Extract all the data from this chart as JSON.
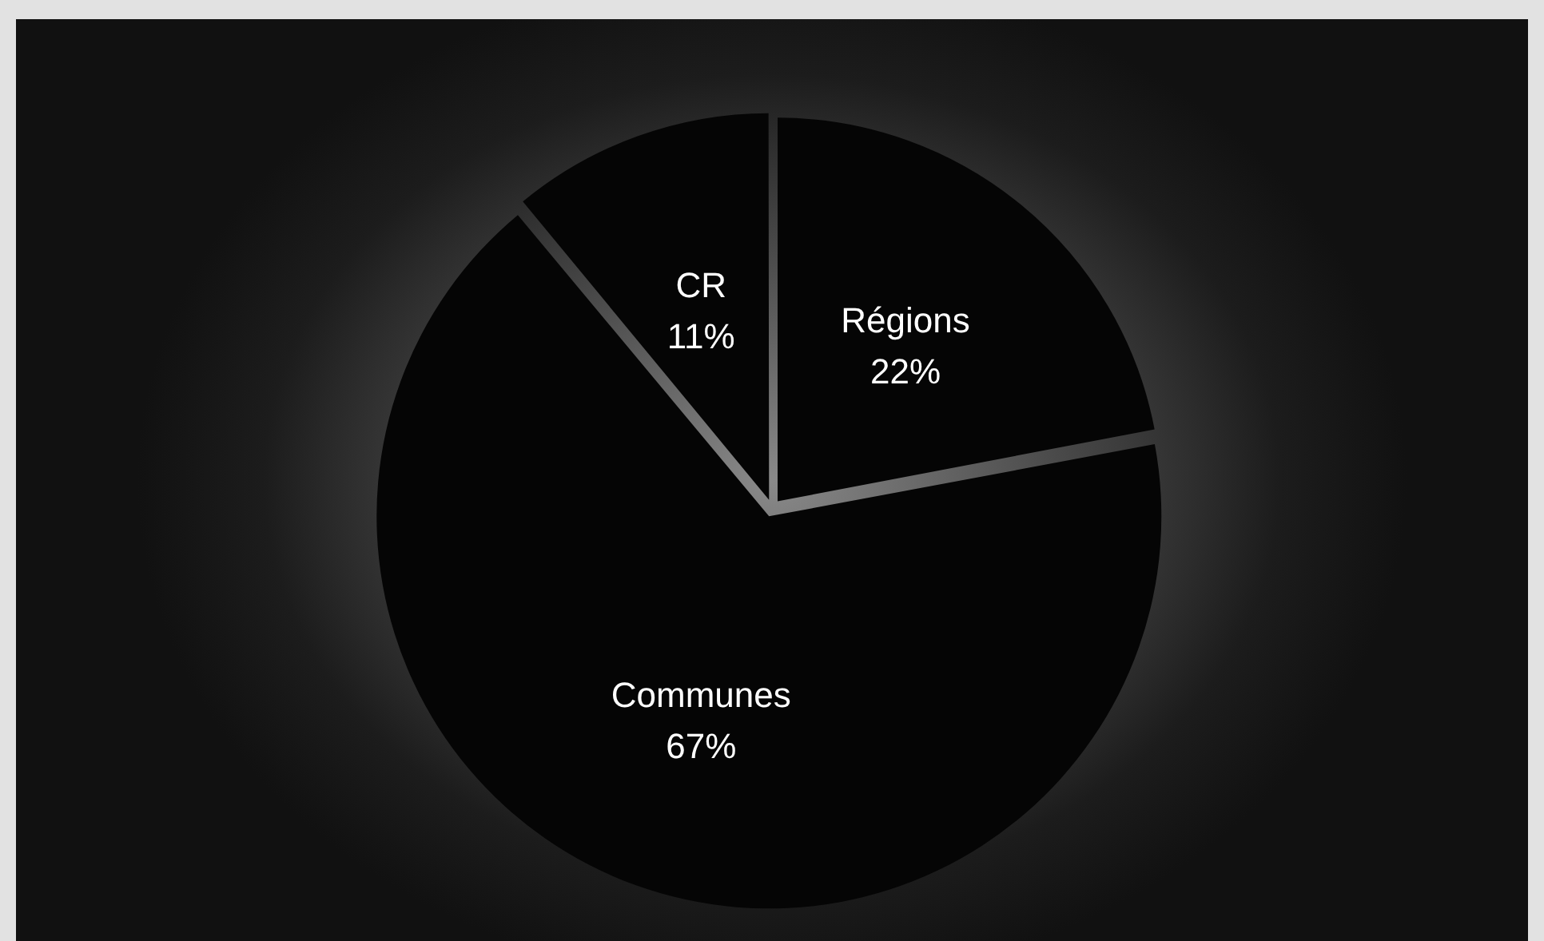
{
  "chart_data": {
    "type": "pie",
    "categories": [
      "Régions",
      "Communes",
      "CR"
    ],
    "values": [
      22,
      67,
      11
    ],
    "colors": [
      "#050505",
      "#050505",
      "#050505"
    ],
    "value_labels": [
      "22%",
      "67%",
      "11%"
    ],
    "legend": false
  }
}
